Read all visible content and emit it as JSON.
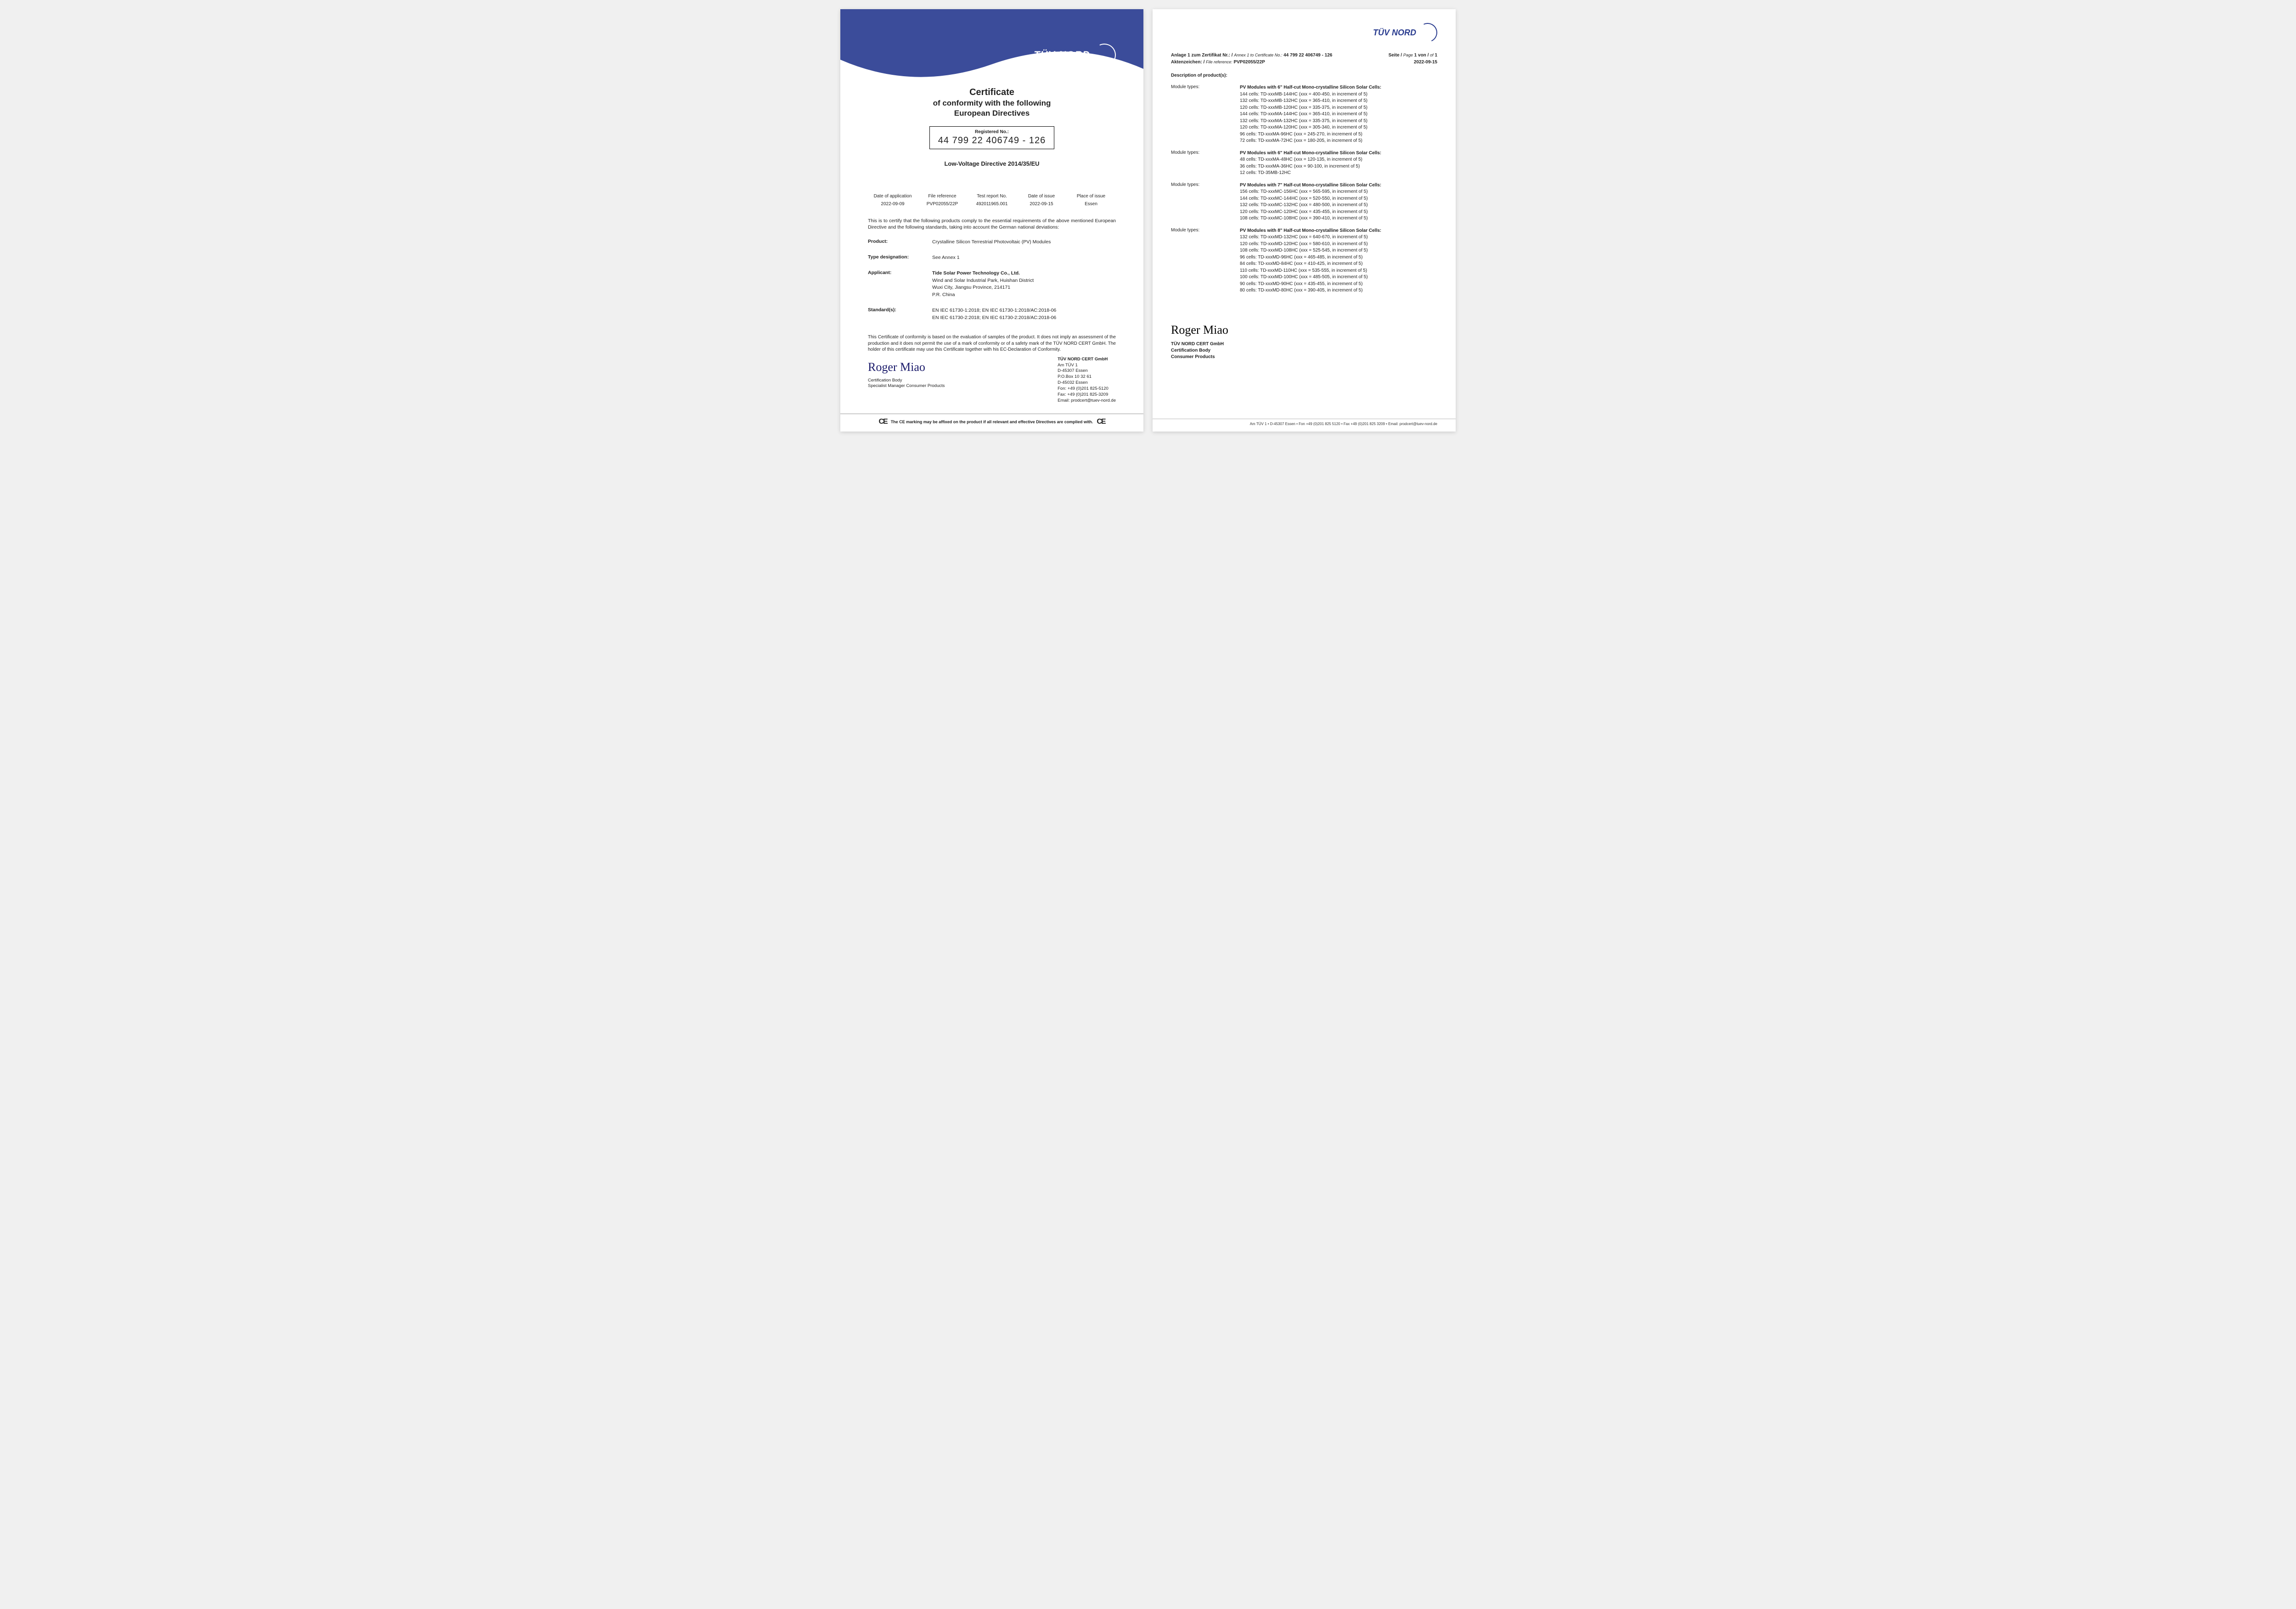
{
  "colors": {
    "brand_blue": "#2a3c8f",
    "swoosh_blue": "#3b4c9a",
    "page_bg": "#ffffff",
    "text": "#222222",
    "sig_ink": "#1a1a6a"
  },
  "page1": {
    "logo_text": "TÜV NORD",
    "title_line1": "Certificate",
    "title_line2": "of conformity with the following",
    "title_line3": "European Directives",
    "reg_label": "Registered No.:",
    "reg_number": "44 799 22 406749 - 126",
    "directive": "Low-Voltage Directive 2014/35/EU",
    "meta": {
      "headers": [
        "Date of application",
        "File reference",
        "Test report No.",
        "Date of issue",
        "Place of issue"
      ],
      "values": [
        "2022-09-09",
        "PVP02055/22P",
        "492011965.001",
        "2022-09-15",
        "Essen"
      ]
    },
    "intro": "This is to certify that the following products comply to the essential requirements of the above mentioned European Directive and the following standards, taking into account the German national deviations:",
    "product_label": "Product:",
    "product_value": "Crystalline Silicon Terrestrial Photovoltaic (PV) Modules",
    "type_label": "Type designation:",
    "type_value": "See Annex 1",
    "applicant_label": "Applicant:",
    "applicant_lines": [
      "Tide Solar Power Technology Co., Ltd.",
      "Wind and Solar Industrial Park, Huishan District",
      "Wuxi City, Jiangsu Province, 214171",
      "P.R. China"
    ],
    "standards_label": "Standard(s):",
    "standards_lines": [
      "EN IEC 61730-1:2018; EN IEC 61730-1:2018/AC:2018-06",
      "EN IEC 61730-2:2018; EN IEC 61730-2:2018/AC:2018-06"
    ],
    "disclaimer": "This Certificate of conformity is based on the evaluation of samples of the product. It does not imply an assessment of the production and it does not permit the use of a mark of conformity or of a safety mark of the TÜV NORD CERT GmbH. The holder of this certificate may use this Certificate together with his EC-Declaration of Conformity.",
    "signature_name": "Roger Miao",
    "sig_role1": "Certification Body",
    "sig_role2": "Specialist Manager Consumer Products",
    "issuer_lines": [
      "TÜV NORD CERT GmbH",
      "Am TÜV 1",
      "D-45307 Essen",
      "P.O.Box 10 32 61",
      "D-45032 Essen",
      "Fon: +49 (0)201 825-5120",
      "Fax: +49 (0)201 825-3209",
      "Email: prodcert@tuev-nord.de"
    ],
    "footer_text": "The CE marking may be affixed on the product if all relevant and effective Directives are complied with.",
    "ce_mark": "CE"
  },
  "page2": {
    "logo_text": "TÜV NORD",
    "header_line1_lhs_label": "Anlage 1 zum Zertifikat Nr.: /",
    "header_line1_lhs_it": "Annex 1 to Certificate No.:",
    "header_line1_lhs_val": "44 799 22 406749 - 126",
    "header_line1_rhs_a": "Seite /",
    "header_line1_rhs_b": "Page",
    "header_line1_rhs_c": "1 von /",
    "header_line1_rhs_d": "of",
    "header_line1_rhs_e": "1",
    "header_line2_lhs_label": "Aktenzeichen: /",
    "header_line2_lhs_it": "File reference:",
    "header_line2_lhs_val": "PVP02055/22P",
    "header_line2_rhs": "2022-09-15",
    "desc_head": "Description of product(s):",
    "module_label": "Module types:",
    "groups": [
      {
        "head": "PV Modules with 6\" Half-cut Mono-crystalline Silicon Solar Cells:",
        "lines": [
          "144 cells: TD-xxxMB-144HC (xxx = 400-450, in increment of 5)",
          "132 cells: TD-xxxMB-132HC (xxx = 365-410, in increment of 5)",
          "120 cells: TD-xxxMB-120HC (xxx = 335-375, in increment of 5)",
          "144 cells: TD-xxxMA-144HC (xxx = 365-410, in increment of 5)",
          "132 cells: TD-xxxMA-132HC (xxx = 335-375, in increment of 5)",
          "120 cells: TD-xxxMA-120HC (xxx = 305-340, in increment of 5)",
          "96 cells: TD-xxxMA-96HC (xxx = 245-270, in increment of 5)",
          "72 cells: TD-xxxMA-72HC (xxx = 180-205, in increment of 5)"
        ]
      },
      {
        "head": "PV Modules with 6\" Half-cut Mono-crystalline Silicon Solar Cells:",
        "lines": [
          "48 cells: TD-xxxMA-48HC (xxx = 120-135, in increment of 5)",
          "36 cells: TD-xxxMA-36HC (xxx = 90-100, in increment of 5)",
          "12 cells: TD-35MB-12HC"
        ]
      },
      {
        "head": "PV Modules with 7\" Half-cut Mono-crystalline Silicon Solar Cells:",
        "lines": [
          "156 cells: TD-xxxMC-156HC (xxx = 565-595, in increment of 5)",
          "144 cells: TD-xxxMC-144HC (xxx = 520-550, in increment of 5)",
          "132 cells: TD-xxxMC-132HC (xxx = 480-500, in increment of 5)",
          "120 cells: TD-xxxMC-120HC (xxx = 435-455, in increment of 5)",
          "108 cells: TD-xxxMC-108HC (xxx = 390-410, in increment of 5)"
        ]
      },
      {
        "head": "PV Modules with 8\" Half-cut Mono-crystalline Silicon Solar Cells:",
        "lines": [
          "132 cells: TD-xxxMD-132HC (xxx = 640-670, in increment of 5)",
          "120 cells: TD-xxxMD-120HC (xxx = 580-610, in increment of 5)",
          "108 cells: TD-xxxMD-108HC (xxx = 525-545, in increment of 5)",
          "96 cells: TD-xxxMD-96HC (xxx = 465-485, in increment of 5)",
          "84 cells: TD-xxxMD-84HC (xxx = 410-425, in increment of 5)",
          "110 cells: TD-xxxMD-110HC (xxx = 535-555, in increment of 5)",
          "100 cells: TD-xxxMD-100HC (xxx = 485-505, in increment of 5)",
          "90 cells: TD-xxxMD-90HC (xxx = 435-455, in increment of 5)",
          "80 cells: TD-xxxMD-80HC (xxx = 390-405, in increment of 5)"
        ]
      }
    ],
    "signature_name": "Roger Miao",
    "sig_lines": [
      "TÜV NORD CERT GmbH",
      "Certification Body",
      "Consumer Products"
    ],
    "footer": "Am TÜV 1 • D-45307 Essen • Fon +49 (0)201 825 5120 • Fax +49 (0)201 825 3209 • Email: prodcert@tuev-nord.de"
  }
}
